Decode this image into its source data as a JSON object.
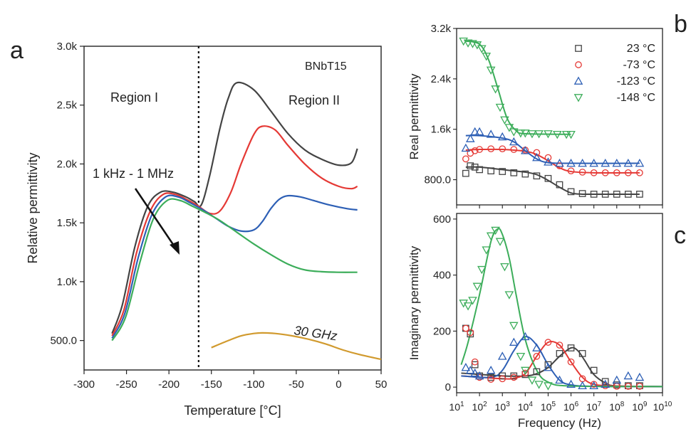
{
  "panels": [
    {
      "id": "a",
      "letter": "a"
    },
    {
      "id": "b",
      "letter": "b"
    },
    {
      "id": "c",
      "letter": "c"
    }
  ],
  "chart_data": [
    {
      "panel": "a",
      "type": "line",
      "xlabel": "Temperature [°C]",
      "ylabel": "Relative permittivity",
      "xlim": [
        -300,
        50
      ],
      "ylim": [
        250,
        3000
      ],
      "xticks": [
        -300,
        -250,
        -200,
        -150,
        -100,
        -50,
        0,
        50
      ],
      "xtick_labels": [
        "-300",
        "-250",
        "-200",
        "-150",
        "-100",
        "-50",
        "0",
        "50"
      ],
      "yticks": [
        500,
        1000,
        1500,
        2000,
        2500,
        3000
      ],
      "ytick_labels": [
        "500.0",
        "1.0k",
        "1.5k",
        "2.0k",
        "2.5k",
        "3.0k"
      ],
      "annotations": {
        "sample": "BNbT15",
        "region1": "Region I",
        "region2": "Region II",
        "freq_range": "1 kHz - 1 MHz",
        "ghz": "30 GHz"
      },
      "divider_x": -165,
      "series": [
        {
          "color": "#444444",
          "x": [
            -267,
            -255,
            -240,
            -225,
            -210,
            -195,
            -180,
            -170,
            -162,
            -152,
            -140,
            -130,
            -120,
            -100,
            -80,
            -60,
            -40,
            -20,
            0,
            15,
            22
          ],
          "y": [
            560,
            800,
            1300,
            1640,
            1760,
            1760,
            1720,
            1680,
            1650,
            1900,
            2300,
            2560,
            2690,
            2630,
            2450,
            2260,
            2120,
            2040,
            1990,
            2010,
            2130
          ]
        },
        {
          "color": "#e53935",
          "x": [
            -267,
            -253,
            -238,
            -222,
            -207,
            -192,
            -177,
            -165,
            -152,
            -140,
            -127,
            -115,
            -100,
            -90,
            -75,
            -60,
            -40,
            -20,
            0,
            15,
            22
          ],
          "y": [
            540,
            760,
            1250,
            1600,
            1740,
            1740,
            1690,
            1640,
            1580,
            1600,
            1760,
            2000,
            2250,
            2320,
            2290,
            2160,
            2000,
            1880,
            1810,
            1790,
            1810
          ]
        },
        {
          "color": "#2d5fb5",
          "x": [
            -267,
            -252,
            -236,
            -220,
            -204,
            -189,
            -175,
            -160,
            -145,
            -130,
            -115,
            -100,
            -90,
            -80,
            -70,
            -60,
            -45,
            -30,
            -10,
            10,
            22
          ],
          "y": [
            520,
            730,
            1210,
            1570,
            1720,
            1720,
            1670,
            1610,
            1540,
            1470,
            1430,
            1440,
            1510,
            1620,
            1700,
            1730,
            1720,
            1690,
            1650,
            1620,
            1610
          ]
        },
        {
          "color": "#3cad5a",
          "x": [
            -267,
            -251,
            -234,
            -218,
            -202,
            -187,
            -172,
            -155,
            -140,
            -120,
            -100,
            -80,
            -60,
            -40,
            -20,
            0,
            22
          ],
          "y": [
            500,
            700,
            1170,
            1540,
            1690,
            1690,
            1640,
            1580,
            1520,
            1420,
            1320,
            1230,
            1150,
            1100,
            1085,
            1080,
            1080
          ]
        },
        {
          "color": "#d19a2e",
          "x": [
            -150,
            -130,
            -115,
            -100,
            -90,
            -75,
            -55,
            -35,
            -15,
            5,
            25,
            50
          ],
          "y": [
            440,
            500,
            540,
            560,
            565,
            560,
            540,
            510,
            470,
            420,
            380,
            340
          ]
        }
      ]
    },
    {
      "panel": "b",
      "type": "scatter",
      "xlabel": "",
      "ylabel": "Real permittivity",
      "xscale": "log",
      "xlim": [
        1,
        10
      ],
      "ylim": [
        400,
        3200
      ],
      "yticks": [
        800,
        1600,
        2400,
        3200
      ],
      "ytick_labels": [
        "800.0",
        "1.6k",
        "2.4k",
        "3.2k"
      ],
      "legend_position": "top-right",
      "series": [
        {
          "name": "23 °C",
          "marker": "square",
          "color": "#444444",
          "x": [
            1.4,
            1.6,
            1.8,
            2,
            2.5,
            3,
            3.5,
            4,
            4.5,
            5,
            5.5,
            6,
            6.5,
            7,
            7.5,
            8,
            8.5,
            9
          ],
          "y": [
            900,
            1020,
            1000,
            960,
            940,
            930,
            910,
            890,
            860,
            820,
            720,
            610,
            580,
            570,
            570,
            570,
            570,
            570
          ]
        },
        {
          "name": "-73 °C",
          "marker": "circle",
          "color": "#e53935",
          "x": [
            1.4,
            1.6,
            1.8,
            2,
            2.5,
            3,
            3.5,
            4,
            4.5,
            5,
            5.5,
            6,
            6.5,
            7,
            7.5,
            8,
            8.5,
            9
          ],
          "y": [
            1130,
            1220,
            1260,
            1280,
            1290,
            1290,
            1280,
            1270,
            1230,
            1150,
            1020,
            940,
            920,
            910,
            910,
            910,
            910,
            910
          ]
        },
        {
          "name": "-123 °C",
          "marker": "triangle-up",
          "color": "#2d5fb5",
          "x": [
            1.4,
            1.6,
            1.8,
            2,
            2.5,
            3,
            3.5,
            4,
            4.5,
            5,
            5.5,
            6,
            6.5,
            7,
            7.5,
            8,
            8.5,
            9
          ],
          "y": [
            1300,
            1450,
            1560,
            1560,
            1520,
            1480,
            1400,
            1260,
            1150,
            1080,
            1060,
            1060,
            1060,
            1060,
            1060,
            1060,
            1060,
            1060
          ]
        },
        {
          "name": "-148 °C",
          "marker": "triangle-down",
          "color": "#3cad5a",
          "x": [
            1.3,
            1.5,
            1.7,
            1.9,
            2.1,
            2.3,
            2.5,
            2.7,
            2.9,
            3.1,
            3.3,
            3.5,
            3.8,
            4,
            4.3,
            4.6,
            5,
            5.4,
            5.8,
            6
          ],
          "y": [
            3000,
            2970,
            2960,
            2940,
            2880,
            2760,
            2540,
            2240,
            1950,
            1750,
            1630,
            1560,
            1540,
            1540,
            1530,
            1530,
            1530,
            1520,
            1520,
            1520
          ]
        }
      ],
      "fit_lines": [
        {
          "color": "#444444",
          "x": [
            1.4,
            2,
            3,
            4,
            4.5,
            5,
            5.5,
            6,
            6.5,
            7,
            9
          ],
          "y": [
            1000,
            1000,
            960,
            920,
            880,
            790,
            680,
            590,
            570,
            570,
            570
          ]
        },
        {
          "color": "#e53935",
          "x": [
            1.4,
            2,
            3,
            4,
            4.5,
            5,
            5.5,
            6,
            7,
            9
          ],
          "y": [
            1270,
            1280,
            1280,
            1250,
            1200,
            1100,
            990,
            930,
            910,
            910
          ]
        },
        {
          "color": "#2d5fb5",
          "x": [
            1.4,
            2,
            3,
            3.5,
            4,
            4.5,
            5,
            6,
            9
          ],
          "y": [
            1500,
            1500,
            1460,
            1400,
            1260,
            1130,
            1070,
            1060,
            1060
          ]
        },
        {
          "color": "#3cad5a",
          "x": [
            1.4,
            2,
            2.4,
            2.8,
            3.2,
            3.6,
            4,
            6
          ],
          "y": [
            3000,
            2950,
            2700,
            2250,
            1780,
            1580,
            1530,
            1520
          ]
        }
      ]
    },
    {
      "panel": "c",
      "type": "scatter",
      "xlabel": "Frequency (Hz)",
      "ylabel": "Imaginary permittivity",
      "xscale": "log",
      "xlim": [
        1,
        10
      ],
      "ylim": [
        -20,
        620
      ],
      "yticks": [
        0,
        200,
        400,
        600
      ],
      "ytick_labels": [
        "0",
        "200",
        "400",
        "600"
      ],
      "xticks": [
        1,
        2,
        3,
        4,
        5,
        6,
        7,
        8,
        9,
        10
      ],
      "xtick_base": "10",
      "xtick_exps": [
        "1",
        "2",
        "3",
        "4",
        "5",
        "6",
        "7",
        "8",
        "9",
        "10"
      ],
      "series": [
        {
          "name": "23 °C",
          "marker": "square",
          "color": "#444444",
          "x": [
            1.4,
            1.6,
            1.8,
            2,
            2.5,
            3,
            3.5,
            4,
            4.5,
            5,
            5.5,
            6,
            6.5,
            7,
            7.5,
            8,
            8.5,
            9
          ],
          "y": [
            210,
            190,
            80,
            40,
            35,
            40,
            40,
            45,
            55,
            80,
            120,
            140,
            120,
            60,
            20,
            8,
            5,
            5
          ]
        },
        {
          "name": "-73 °C",
          "marker": "circle",
          "color": "#e53935",
          "x": [
            1.4,
            1.6,
            1.8,
            2,
            2.5,
            3,
            3.5,
            4,
            4.5,
            5,
            5.5,
            6,
            6.5,
            7,
            7.5,
            8,
            8.5,
            9
          ],
          "y": [
            210,
            195,
            90,
            35,
            28,
            30,
            35,
            50,
            110,
            160,
            150,
            90,
            30,
            10,
            5,
            3,
            3,
            3
          ]
        },
        {
          "name": "-123 °C",
          "marker": "triangle-up",
          "color": "#2d5fb5",
          "x": [
            1.4,
            1.6,
            1.8,
            2,
            2.5,
            3,
            3.5,
            4,
            4.5,
            5,
            5.5,
            6,
            6.5,
            7,
            7.5,
            8,
            8.5,
            9
          ],
          "y": [
            70,
            60,
            50,
            40,
            60,
            110,
            160,
            180,
            140,
            70,
            25,
            10,
            5,
            5,
            10,
            25,
            40,
            35
          ]
        },
        {
          "name": "-148 °C",
          "marker": "triangle-down",
          "color": "#3cad5a",
          "x": [
            1.3,
            1.5,
            1.7,
            1.9,
            2.1,
            2.3,
            2.5,
            2.7,
            2.9,
            3.1,
            3.3,
            3.5,
            3.8,
            4,
            4.3,
            4.6,
            5
          ],
          "y": [
            300,
            290,
            310,
            360,
            420,
            490,
            540,
            560,
            520,
            430,
            330,
            220,
            110,
            60,
            25,
            10,
            5
          ]
        }
      ],
      "fit_lines": [
        {
          "color": "#444444",
          "x": [
            1.2,
            3,
            4,
            4.5,
            5,
            5.5,
            6,
            6.3,
            6.6,
            7,
            7.5,
            8,
            10
          ],
          "y": [
            50,
            40,
            40,
            48,
            70,
            110,
            140,
            130,
            95,
            45,
            15,
            4,
            2
          ]
        },
        {
          "color": "#e53935",
          "x": [
            1.2,
            3,
            3.5,
            4,
            4.5,
            5,
            5.5,
            6,
            6.5,
            7,
            8,
            10
          ],
          "y": [
            40,
            30,
            32,
            48,
            110,
            160,
            150,
            90,
            35,
            10,
            4,
            2
          ]
        },
        {
          "color": "#2d5fb5",
          "x": [
            1.2,
            2.5,
            3,
            3.5,
            4,
            4.5,
            5,
            5.5,
            6,
            7,
            10
          ],
          "y": [
            40,
            35,
            60,
            130,
            180,
            150,
            80,
            25,
            8,
            3,
            2
          ]
        },
        {
          "color": "#3cad5a",
          "x": [
            1.2,
            1.5,
            2,
            2.5,
            2.8,
            3,
            3.3,
            3.6,
            4,
            4.5,
            5,
            6,
            10
          ],
          "y": [
            80,
            160,
            330,
            520,
            565,
            545,
            460,
            330,
            170,
            60,
            18,
            4,
            2
          ]
        }
      ]
    }
  ]
}
